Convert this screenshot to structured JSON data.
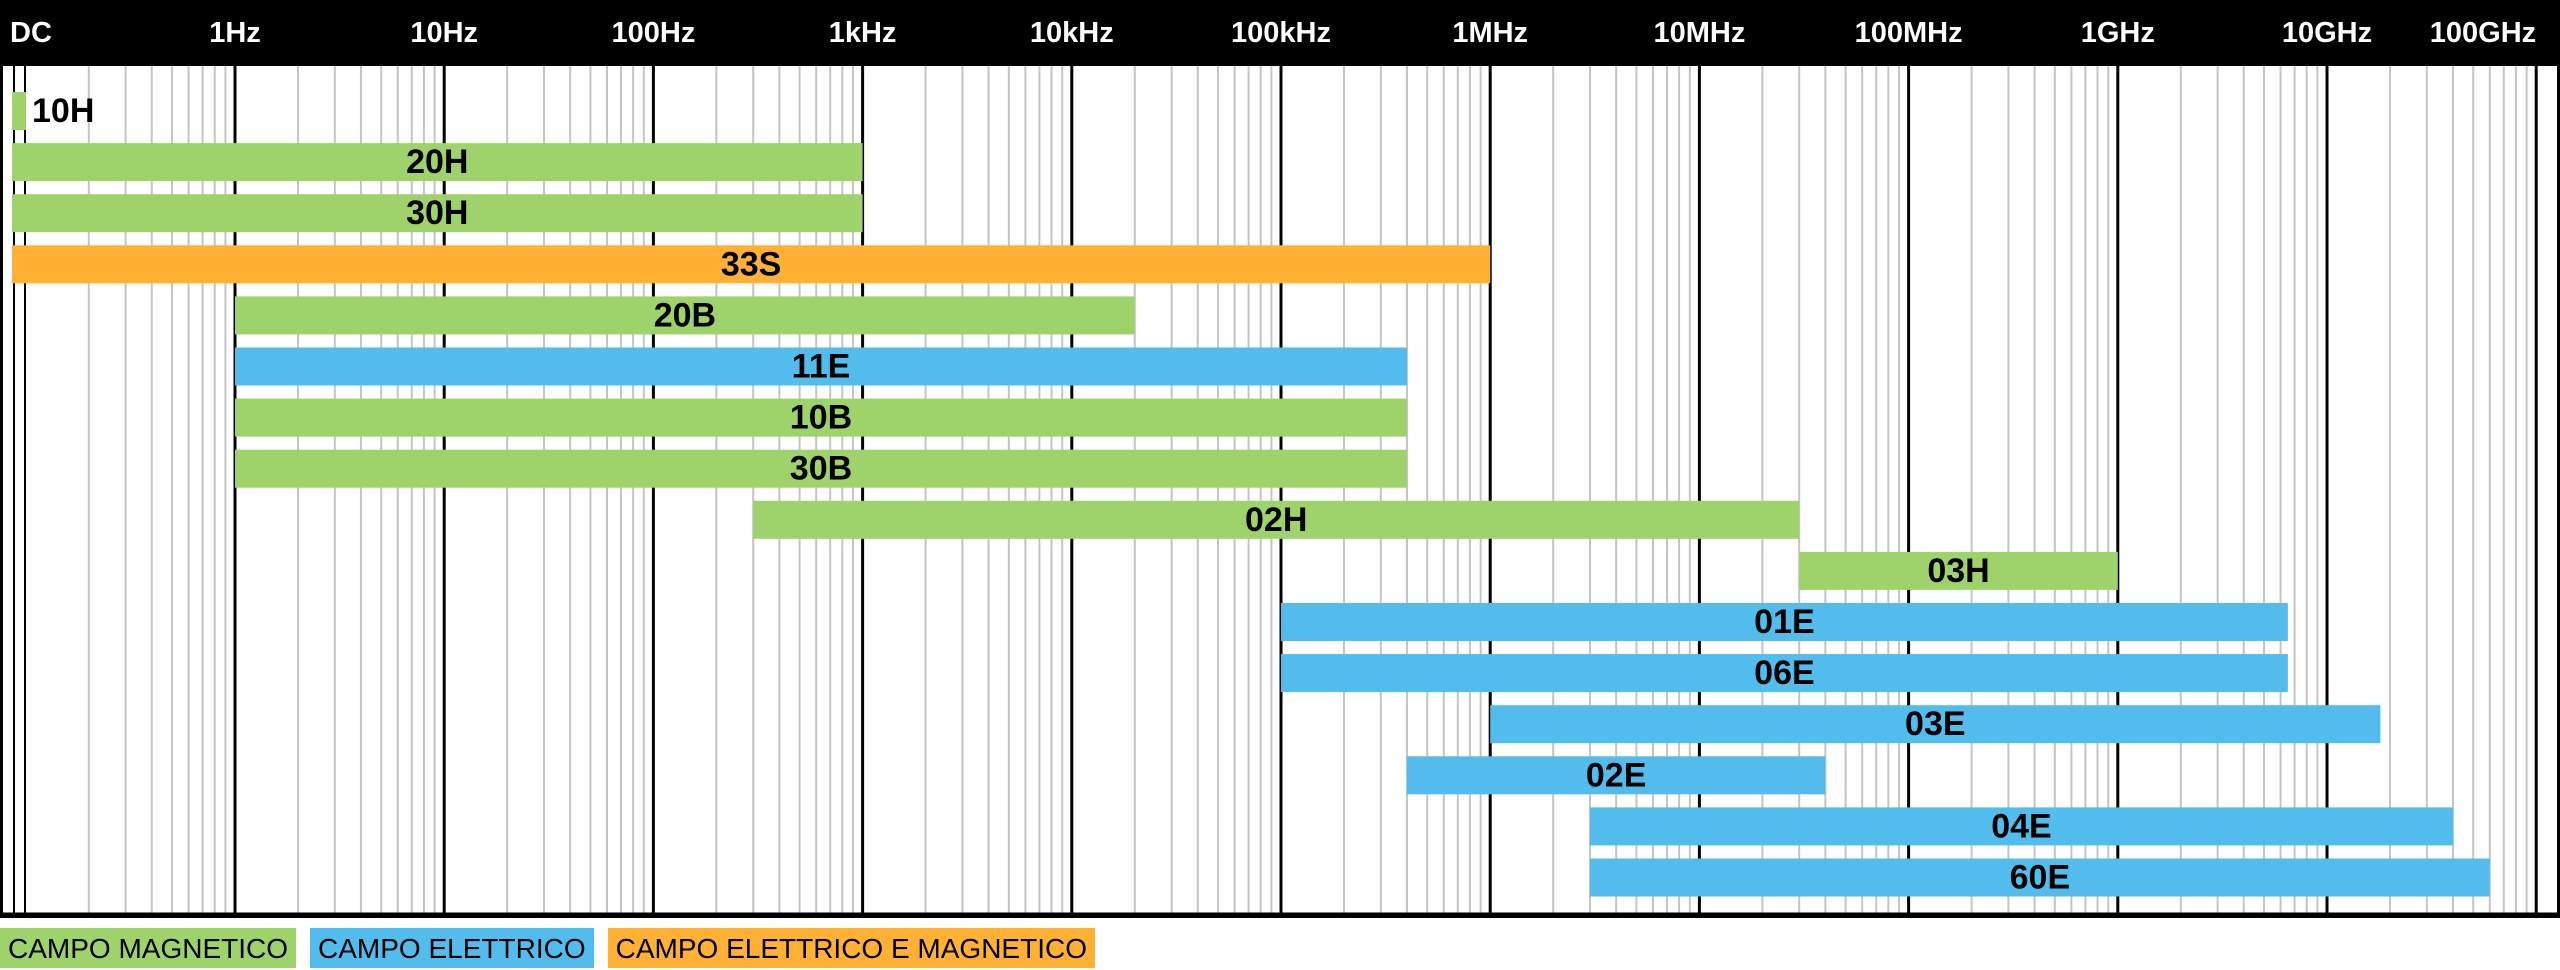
{
  "chart_data": {
    "type": "bar",
    "orientation": "horizontal-range",
    "x_scale": "log",
    "grid": true,
    "x_ticks": [
      "DC",
      "1Hz",
      "10Hz",
      "100Hz",
      "1kHz",
      "10kHz",
      "100kHz",
      "1MHz",
      "10MHz",
      "100MHz",
      "1GHz",
      "10GHz",
      "100GHz"
    ],
    "x_tick_values_hz": [
      0,
      1,
      10,
      100,
      1000,
      10000,
      100000,
      1000000,
      10000000,
      100000000,
      1000000000,
      10000000000,
      100000000000
    ],
    "xlim_hz": [
      0,
      300000000000
    ],
    "categories": [
      "10H",
      "20H",
      "30H",
      "33S",
      "20B",
      "11E",
      "10B",
      "30B",
      "02H",
      "03H",
      "01E",
      "06E",
      "03E",
      "02E",
      "04E",
      "60E"
    ],
    "bars": [
      {
        "label": "10H",
        "from_hz": 0,
        "to_hz": 0,
        "field": "magnetic"
      },
      {
        "label": "20H",
        "from_hz": 0,
        "to_hz": 1000,
        "field": "magnetic"
      },
      {
        "label": "30H",
        "from_hz": 0,
        "to_hz": 1000,
        "field": "magnetic"
      },
      {
        "label": "33S",
        "from_hz": 0,
        "to_hz": 1000000,
        "field": "both"
      },
      {
        "label": "20B",
        "from_hz": 1,
        "to_hz": 20000,
        "field": "magnetic"
      },
      {
        "label": "11E",
        "from_hz": 1,
        "to_hz": 400000,
        "field": "electric"
      },
      {
        "label": "10B",
        "from_hz": 1,
        "to_hz": 400000,
        "field": "magnetic"
      },
      {
        "label": "30B",
        "from_hz": 1,
        "to_hz": 400000,
        "field": "magnetic"
      },
      {
        "label": "02H",
        "from_hz": 300,
        "to_hz": 30000000,
        "field": "magnetic"
      },
      {
        "label": "03H",
        "from_hz": 30000000,
        "to_hz": 1000000000,
        "field": "magnetic"
      },
      {
        "label": "01E",
        "from_hz": 100000,
        "to_hz": 6500000000,
        "field": "electric"
      },
      {
        "label": "06E",
        "from_hz": 100000,
        "to_hz": 6500000000,
        "field": "electric"
      },
      {
        "label": "03E",
        "from_hz": 1000000,
        "to_hz": 18000000000,
        "field": "electric"
      },
      {
        "label": "02E",
        "from_hz": 400000,
        "to_hz": 40000000,
        "field": "electric"
      },
      {
        "label": "04E",
        "from_hz": 3000000,
        "to_hz": 40000000000,
        "field": "electric"
      },
      {
        "label": "60E",
        "from_hz": 3000000,
        "to_hz": 60000000000,
        "field": "electric"
      }
    ],
    "colors": {
      "magnetic": "#9ed26a",
      "electric": "#52bced",
      "both": "#ffb135"
    },
    "legend": [
      {
        "key": "magnetic",
        "label": "CAMPO MAGNETICO"
      },
      {
        "key": "electric",
        "label": "CAMPO ELETTRICO"
      },
      {
        "key": "both",
        "label": "CAMPO ELETTRICO E MAGNETICO"
      }
    ],
    "legend_position": "bottom-left"
  }
}
